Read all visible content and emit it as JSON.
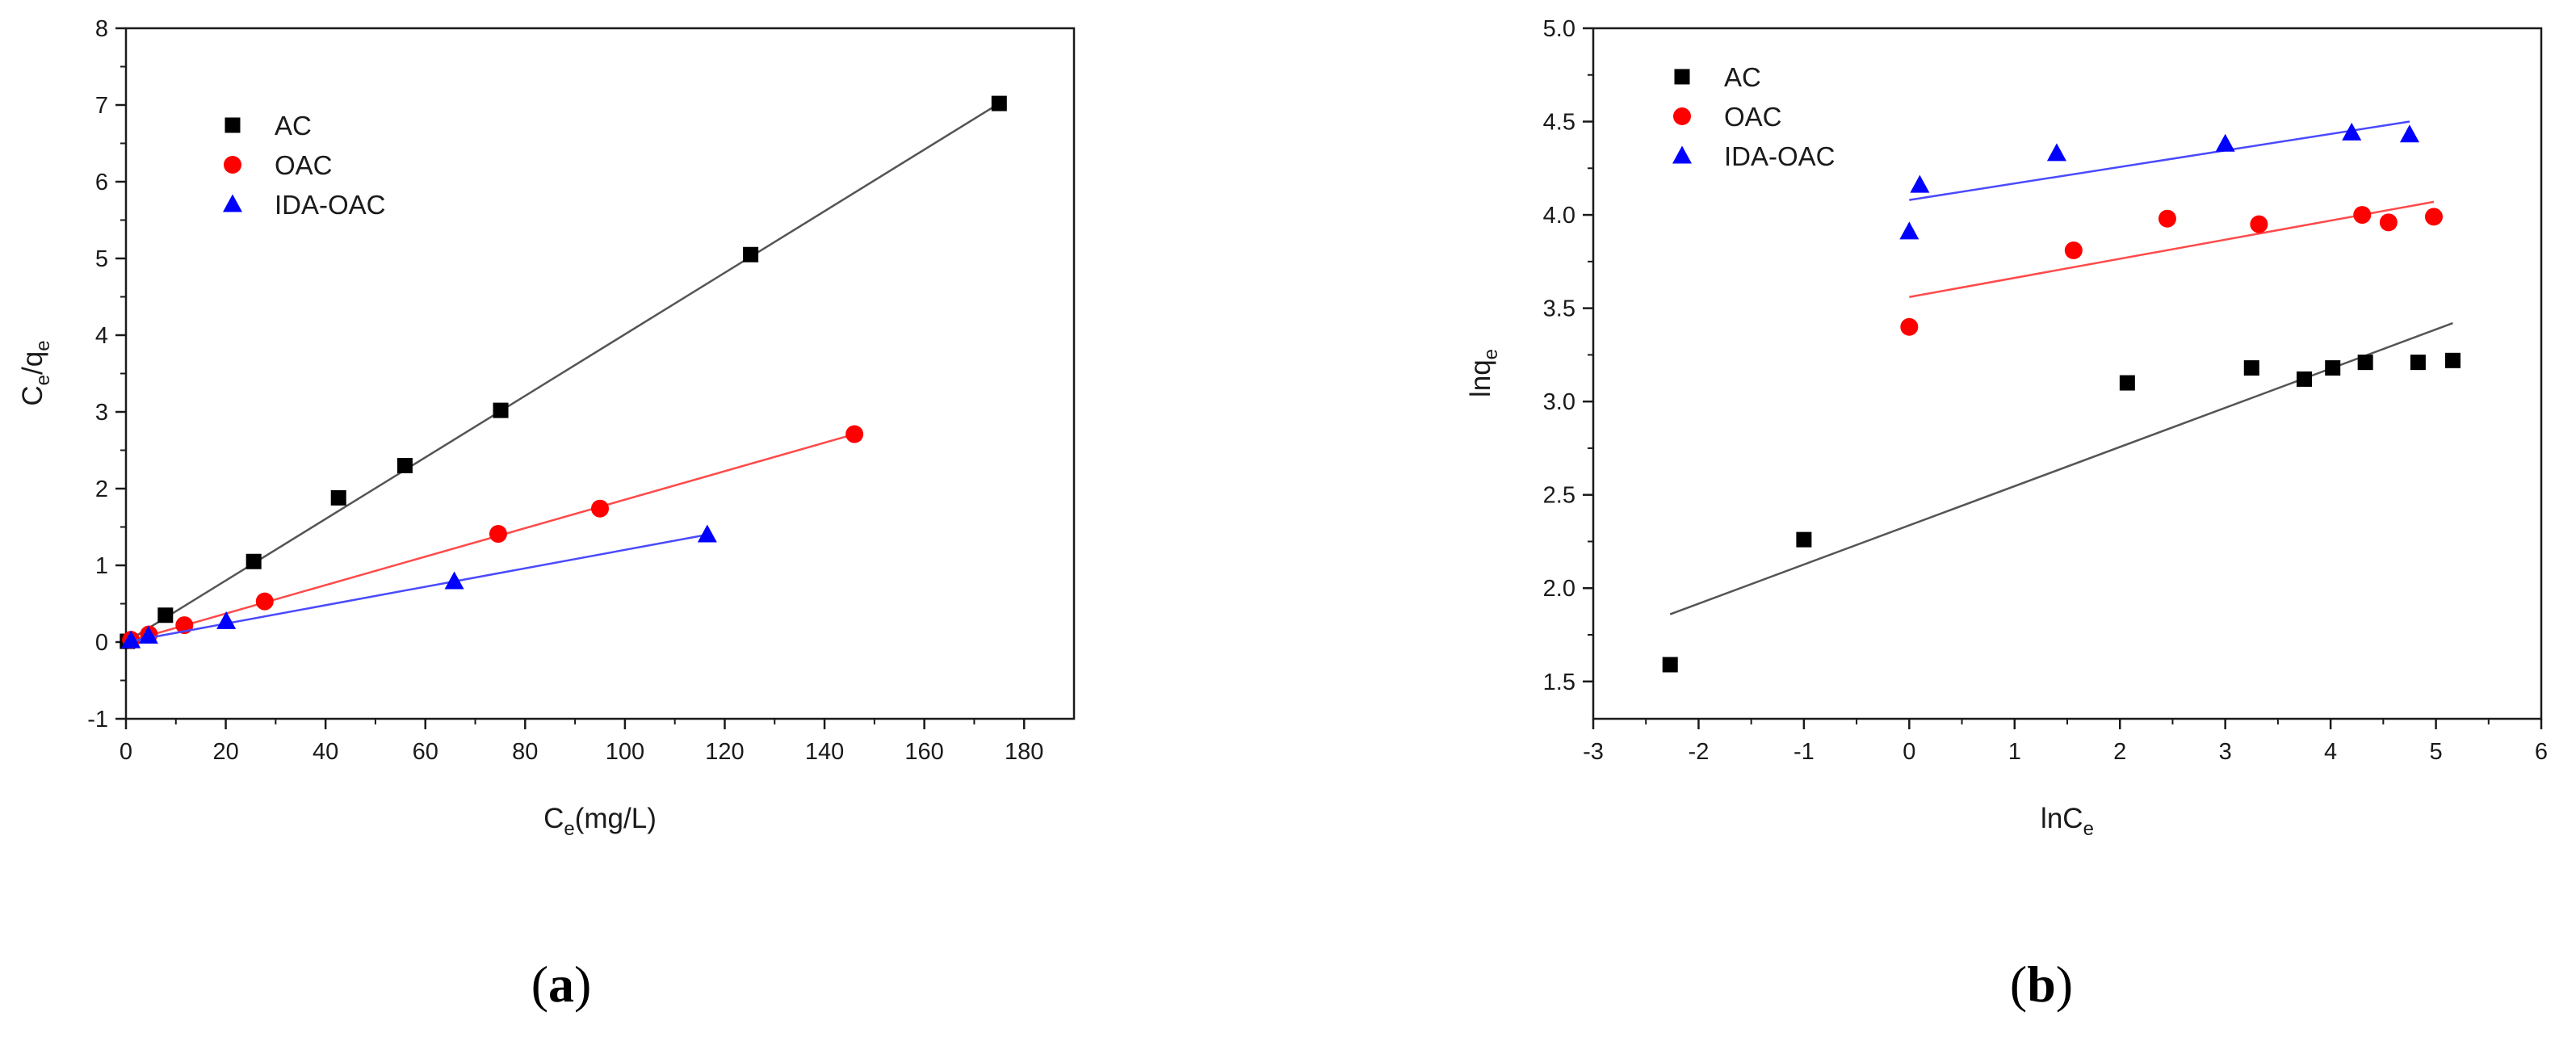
{
  "chart_data": [
    {
      "type": "scatter",
      "panel_label": {
        "open": "(",
        "letter": "a",
        "close": ")"
      },
      "xlabel": {
        "main": "C",
        "sub": "e",
        "rest": "(mg/L)"
      },
      "ylabel": {
        "main": "C",
        "sub": "e",
        "slash": "/q",
        "sub2": "e"
      },
      "xlim": [
        0,
        190
      ],
      "ylim": [
        -1,
        8
      ],
      "xticks": [
        "0",
        "20",
        "40",
        "60",
        "80",
        "100",
        "120",
        "140",
        "160",
        "180"
      ],
      "xtick_values": [
        0,
        20,
        40,
        60,
        80,
        100,
        120,
        140,
        160,
        180
      ],
      "yticks": [
        "-1",
        "0",
        "1",
        "2",
        "3",
        "4",
        "5",
        "6",
        "7",
        "8"
      ],
      "ytick_values": [
        -1,
        0,
        1,
        2,
        3,
        4,
        5,
        6,
        7,
        8
      ],
      "legend_position": "top-left",
      "grid": false,
      "series": [
        {
          "name": "AC",
          "marker": "square",
          "color": "#000000",
          "line_color": "#555555",
          "x": [
            0.3,
            7.9,
            25.6,
            42.6,
            55.9,
            75.1,
            125.2,
            175.0
          ],
          "y": [
            0.01,
            0.35,
            1.05,
            1.88,
            2.3,
            3.02,
            5.05,
            7.02
          ],
          "fit": {
            "x": [
              0,
              175
            ],
            "y": [
              0.0,
              7.02
            ]
          }
        },
        {
          "name": "OAC",
          "marker": "circle",
          "color": "#ff0000",
          "line_color": "#ff4a4a",
          "x": [
            1.0,
            4.6,
            11.7,
            27.8,
            74.6,
            95.0,
            146.0
          ],
          "y": [
            0.03,
            0.1,
            0.22,
            0.53,
            1.41,
            1.74,
            2.71
          ],
          "fit": {
            "x": [
              0,
              146
            ],
            "y": [
              0.0,
              2.71
            ]
          }
        },
        {
          "name": "IDA-OAC",
          "marker": "triangle",
          "color": "#0000ff",
          "line_color": "#4a4aff",
          "x": [
            1.0,
            4.5,
            20.1,
            65.8,
            116.5
          ],
          "y": [
            0.02,
            0.08,
            0.27,
            0.79,
            1.4
          ],
          "fit": {
            "x": [
              0,
              116.5
            ],
            "y": [
              0.0,
              1.4
            ]
          }
        }
      ]
    },
    {
      "type": "scatter",
      "panel_label": {
        "open": "(",
        "letter": "b",
        "close": ")"
      },
      "xlabel": {
        "main": "lnC",
        "sub": "e",
        "rest": ""
      },
      "ylabel": {
        "main": "lnq",
        "sub": "e",
        "slash": "",
        "sub2": ""
      },
      "xlim": [
        -3,
        6
      ],
      "ylim": [
        1.3,
        5.0
      ],
      "xticks": [
        "-3",
        "-2",
        "-1",
        "0",
        "1",
        "2",
        "3",
        "4",
        "5",
        "6"
      ],
      "xtick_values": [
        -3,
        -2,
        -1,
        0,
        1,
        2,
        3,
        4,
        5,
        6
      ],
      "yticks": [
        "1.5",
        "2.0",
        "2.5",
        "3.0",
        "3.5",
        "4.0",
        "4.5",
        "5.0"
      ],
      "ytick_values": [
        1.5,
        2.0,
        2.5,
        3.0,
        3.5,
        4.0,
        4.5,
        5.0
      ],
      "legend_position": "top-left",
      "grid": false,
      "series": [
        {
          "name": "AC",
          "marker": "square",
          "color": "#000000",
          "line_color": "#555555",
          "x": [
            -2.27,
            -1.0,
            2.07,
            3.25,
            3.75,
            4.02,
            4.33,
            4.83,
            5.16
          ],
          "y": [
            1.59,
            2.26,
            3.1,
            3.18,
            3.12,
            3.18,
            3.21,
            3.21,
            3.22
          ],
          "fit": {
            "x": [
              -2.27,
              5.16
            ],
            "y": [
              1.86,
              3.42
            ]
          }
        },
        {
          "name": "OAC",
          "marker": "circle",
          "color": "#ff0000",
          "line_color": "#ff4a4a",
          "x": [
            0.0,
            1.56,
            2.45,
            3.32,
            4.3,
            4.55,
            4.98
          ],
          "y": [
            3.4,
            3.81,
            3.98,
            3.95,
            4.0,
            3.96,
            3.99
          ],
          "fit": {
            "x": [
              0.0,
              4.98
            ],
            "y": [
              3.56,
              4.07
            ]
          }
        },
        {
          "name": "IDA-OAC",
          "marker": "triangle",
          "color": "#0000ff",
          "line_color": "#4a4aff",
          "x": [
            0.0,
            0.1,
            1.4,
            3.0,
            4.2,
            4.75
          ],
          "y": [
            3.91,
            4.16,
            4.33,
            4.38,
            4.44,
            4.43
          ],
          "fit": {
            "x": [
              0.0,
              4.75
            ],
            "y": [
              4.08,
              4.5
            ]
          }
        }
      ]
    }
  ]
}
